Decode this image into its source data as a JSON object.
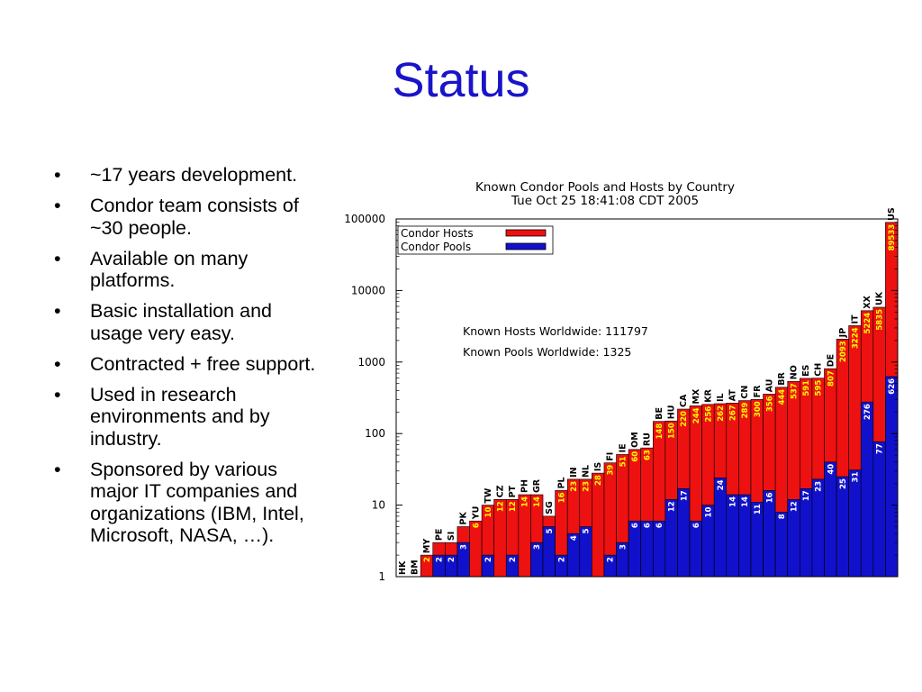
{
  "slide": {
    "title": "Status",
    "bullets": [
      "~17 years development.",
      "Condor team consists of ~30 people.",
      "Available on many platforms.",
      "Basic installation and usage very easy.",
      "Contracted + free support.",
      "Used in research environments and by industry.",
      "Sponsored by various major IT companies and organizations (IBM, Intel, Microsoft, NASA, …)."
    ],
    "bullet_symbol": "•"
  },
  "chart_data": {
    "type": "bar",
    "title": "Known Condor Pools and Hosts by Country",
    "subtitle": "Tue Oct 25 18:41:08 CDT 2005",
    "y_scale": "log",
    "ylim": [
      1,
      100000
    ],
    "y_ticks": [
      "1",
      "10",
      "100",
      "1000",
      "10000",
      "100000"
    ],
    "grid": false,
    "legend_position": "top-left",
    "annotations": [
      "Known Hosts Worldwide: 111797",
      "Known Pools Worldwide: 1325"
    ],
    "colors": {
      "hosts": "#ee1111",
      "pools": "#1111cc",
      "value_text_pools": "#ffffff",
      "value_text_hosts": "#ffff00"
    },
    "categories": [
      "HK",
      "BM",
      "MY",
      "PE",
      "SI",
      "PK",
      "YU",
      "TW",
      "CZ",
      "PT",
      "PH",
      "GR",
      "SG",
      "PL",
      "IN",
      "NL",
      "IS",
      "FI",
      "IE",
      "OM",
      "RU",
      "BE",
      "HU",
      "CA",
      "MX",
      "KR",
      "IL",
      "AT",
      "CN",
      "FR",
      "AU",
      "BR",
      "NO",
      "ES",
      "CH",
      "DE",
      "JP",
      "IT",
      "XX",
      "UK",
      "US"
    ],
    "series": [
      {
        "name": "Condor Hosts",
        "values": [
          1,
          1,
          2,
          3,
          3,
          5,
          6,
          10,
          12,
          12,
          14,
          14,
          7,
          16,
          23,
          23,
          28,
          39,
          51,
          60,
          63,
          148,
          150,
          220,
          244,
          256,
          262,
          267,
          289,
          300,
          356,
          444,
          537,
          591,
          595,
          807,
          2093,
          3224,
          5224,
          5835,
          89533
        ]
      },
      {
        "name": "Condor Pools",
        "values": [
          1,
          1,
          1,
          2,
          2,
          3,
          1,
          2,
          1,
          2,
          1,
          3,
          5,
          2,
          4,
          5,
          1,
          2,
          3,
          6,
          6,
          6,
          12,
          17,
          6,
          10,
          24,
          14,
          14,
          11,
          16,
          8,
          12,
          17,
          23,
          40,
          25,
          31,
          276,
          77,
          626
        ]
      }
    ]
  }
}
